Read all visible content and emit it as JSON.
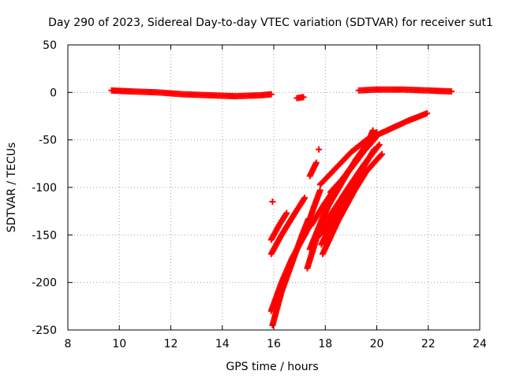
{
  "chart_data": {
    "type": "scatter",
    "title": "Day 290 of 2023, Sidereal Day-to-day VTEC variation (SDTVAR) for receiver sut1",
    "xlabel": "GPS time / hours",
    "ylabel": "SDTVAR / TECUs",
    "xlim": [
      8,
      24
    ],
    "ylim": [
      -250,
      50
    ],
    "xticks": [
      8,
      10,
      12,
      14,
      16,
      18,
      20,
      22,
      24
    ],
    "yticks": [
      -250,
      -200,
      -150,
      -100,
      -50,
      0,
      50
    ],
    "grid": true,
    "marker_color": "#ff0000",
    "series": [
      {
        "name": "near-zero-a",
        "points": [
          [
            9.7,
            2
          ],
          [
            10.5,
            1
          ],
          [
            11.5,
            0
          ],
          [
            12.5,
            -2
          ],
          [
            13.5,
            -3
          ],
          [
            14.5,
            -4
          ],
          [
            15.5,
            -3
          ],
          [
            15.9,
            -2
          ]
        ]
      },
      {
        "name": "near-zero-b",
        "points": [
          [
            16.9,
            -6
          ],
          [
            17.15,
            -5
          ]
        ]
      },
      {
        "name": "near-zero-c",
        "points": [
          [
            19.3,
            2
          ],
          [
            20.0,
            3
          ],
          [
            21.0,
            3
          ],
          [
            22.0,
            2
          ],
          [
            22.9,
            1
          ]
        ]
      },
      {
        "name": "isolated-a",
        "points": [
          [
            15.95,
            -115
          ]
        ]
      },
      {
        "name": "isolated-b",
        "points": [
          [
            17.75,
            -60
          ]
        ]
      },
      {
        "name": "isolated-c",
        "points": [
          [
            17.4,
            -88
          ],
          [
            17.65,
            -74
          ]
        ]
      },
      {
        "name": "arc-1",
        "points": [
          [
            15.9,
            -170
          ],
          [
            16.3,
            -150
          ],
          [
            16.8,
            -128
          ],
          [
            17.2,
            -111
          ]
        ]
      },
      {
        "name": "arc-2",
        "points": [
          [
            15.9,
            -155
          ],
          [
            16.2,
            -140
          ],
          [
            16.5,
            -127
          ]
        ]
      },
      {
        "name": "arc-3",
        "points": [
          [
            15.95,
            -245
          ],
          [
            16.3,
            -210
          ],
          [
            16.7,
            -180
          ],
          [
            17.1,
            -150
          ],
          [
            17.35,
            -133
          ]
        ]
      },
      {
        "name": "arc-4",
        "points": [
          [
            15.9,
            -230
          ],
          [
            16.3,
            -200
          ],
          [
            16.7,
            -175
          ],
          [
            17.1,
            -155
          ],
          [
            17.4,
            -140
          ]
        ]
      },
      {
        "name": "arc-5",
        "points": [
          [
            17.2,
            -150
          ],
          [
            17.5,
            -125
          ],
          [
            17.8,
            -103
          ]
        ]
      },
      {
        "name": "arc-6",
        "points": [
          [
            17.3,
            -185
          ],
          [
            17.7,
            -150
          ],
          [
            18.1,
            -120
          ],
          [
            18.4,
            -102
          ]
        ]
      },
      {
        "name": "arc-7",
        "points": [
          [
            17.8,
            -97
          ],
          [
            18.4,
            -80
          ],
          [
            19.0,
            -63
          ],
          [
            19.6,
            -50
          ],
          [
            20.4,
            -40
          ],
          [
            21.2,
            -30
          ],
          [
            21.95,
            -22
          ]
        ]
      },
      {
        "name": "arc-8",
        "points": [
          [
            17.85,
            -160
          ],
          [
            18.4,
            -130
          ],
          [
            19.0,
            -100
          ],
          [
            19.5,
            -78
          ],
          [
            19.9,
            -60
          ]
        ]
      },
      {
        "name": "arc-9",
        "points": [
          [
            17.8,
            -150
          ],
          [
            18.3,
            -125
          ],
          [
            18.9,
            -100
          ],
          [
            19.5,
            -76
          ],
          [
            20.1,
            -55
          ]
        ]
      },
      {
        "name": "arc-10",
        "points": [
          [
            17.9,
            -170
          ],
          [
            18.5,
            -135
          ],
          [
            19.1,
            -105
          ],
          [
            19.6,
            -83
          ],
          [
            20.2,
            -65
          ]
        ]
      },
      {
        "name": "arc-11",
        "points": [
          [
            17.4,
            -165
          ],
          [
            18.0,
            -125
          ],
          [
            18.6,
            -97
          ],
          [
            19.2,
            -70
          ],
          [
            19.8,
            -48
          ],
          [
            20.0,
            -42
          ]
        ]
      },
      {
        "name": "arc-12",
        "points": [
          [
            18.2,
            -105
          ],
          [
            18.7,
            -90
          ],
          [
            19.3,
            -68
          ],
          [
            19.7,
            -50
          ],
          [
            19.85,
            -40
          ]
        ]
      },
      {
        "name": "arc-13",
        "points": [
          [
            17.45,
            -140
          ],
          [
            17.9,
            -120
          ],
          [
            18.4,
            -100
          ],
          [
            19.0,
            -80
          ],
          [
            19.5,
            -62
          ],
          [
            19.95,
            -48
          ]
        ]
      }
    ]
  }
}
